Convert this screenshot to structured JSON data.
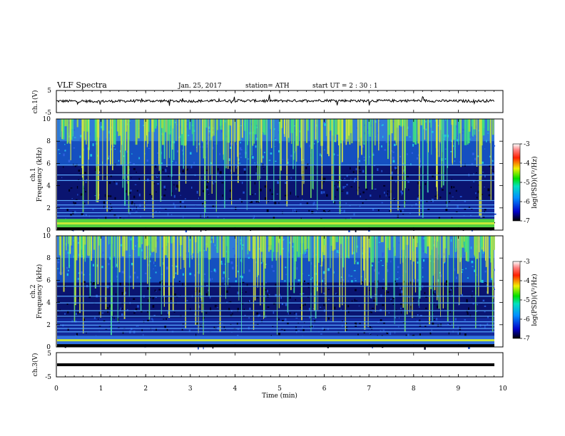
{
  "header": {
    "title": "VLF  Spectra",
    "date": "Jan. 25, 2017",
    "station": "station= ATH",
    "start": "start  UT  =   2  : 30 : 1"
  },
  "chart_data": [
    {
      "type": "line",
      "panel": "ch.1",
      "ylabel": "ch.1(V)",
      "ylim": [
        -5,
        5
      ],
      "yticks": [
        "5",
        "-5"
      ],
      "description_value": "waveform roughly constant near 0 V with small fluctuations",
      "x": [
        0,
        1,
        2,
        3,
        4,
        5,
        6,
        7,
        8,
        9,
        9.8
      ],
      "values": [
        0.2,
        0.1,
        0.3,
        0.2,
        0.4,
        0.3,
        0.5,
        0.3,
        0.4,
        0.2,
        0.3
      ]
    },
    {
      "type": "heatmap",
      "panel": "ch.1",
      "ylabel": "ch.1\nFrequency (kHz)",
      "ylim": [
        0,
        10
      ],
      "yticks": [
        "0",
        "2",
        "4",
        "6",
        "8",
        "10"
      ],
      "colorbar": {
        "label": "log(PSD)(V²/Hz)",
        "ticks": [
          "-3",
          "-4",
          "-5",
          "-6",
          "-7"
        ],
        "range": [
          -7,
          -3
        ]
      },
      "bands_khz": [
        0.3,
        0.5,
        0.7,
        1.0,
        1.3,
        1.6,
        2.0,
        2.3,
        2.7,
        4.5,
        5.0,
        5.9
      ]
    },
    {
      "type": "heatmap",
      "panel": "ch.2",
      "ylabel": "ch.2\nFrequency (kHz)",
      "ylim": [
        0,
        10
      ],
      "yticks": [
        "0",
        "2",
        "4",
        "6",
        "8",
        "10"
      ],
      "colorbar": {
        "label": "log(PSD)(V²/Hz)",
        "ticks": [
          "-3",
          "-4",
          "-5",
          "-6",
          "-7"
        ],
        "range": [
          -7,
          -3
        ]
      },
      "bands_khz": [
        0.3,
        0.6,
        1.0,
        1.4,
        1.7,
        2.0,
        2.3,
        2.8,
        3.3,
        4.0,
        4.6,
        5.5
      ]
    },
    {
      "type": "line",
      "panel": "ch.3",
      "ylabel": "ch.3(V)",
      "ylim": [
        -5,
        5
      ],
      "yticks": [
        "5",
        "-5"
      ],
      "x": [
        0,
        9.8
      ],
      "values": [
        -0.2,
        -0.2
      ]
    }
  ],
  "xaxis": {
    "label": "Time  (min)",
    "range": [
      0,
      10
    ],
    "ticks": [
      "0",
      "1",
      "2",
      "3",
      "4",
      "5",
      "6",
      "7",
      "8",
      "9",
      "10"
    ]
  },
  "colors": {
    "trace": "#000000",
    "background": "#ffffff"
  }
}
